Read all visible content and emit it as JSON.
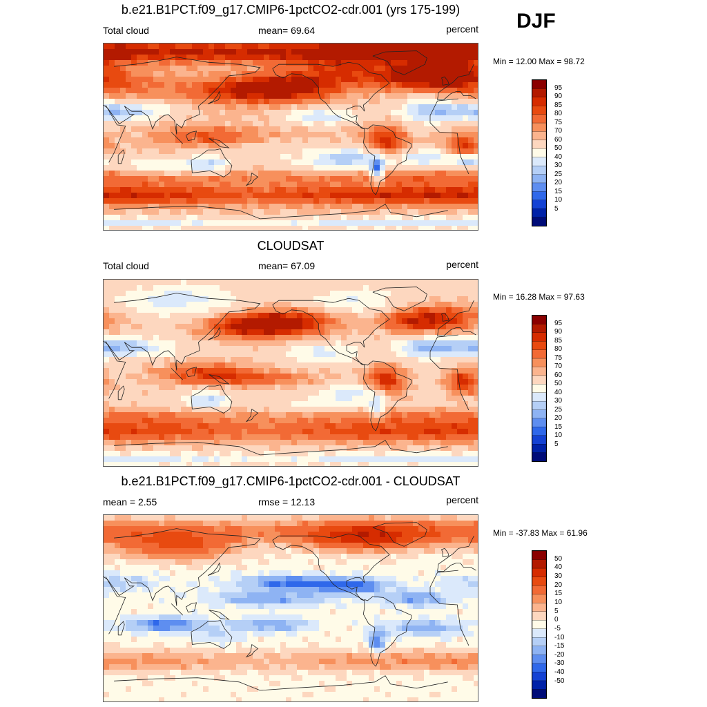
{
  "season": "DJF",
  "panels": [
    {
      "id": "model",
      "title": "b.e21.B1PCT.f09_g17.CMIP6-1pctCO2-cdr.001 (yrs 175-199)",
      "left_text": "Total cloud",
      "center_text": "mean=  69.64",
      "right_text": "percent",
      "minmax": "Min =  12.00 Max =  98.72",
      "colorbar_labels": [
        "95",
        "90",
        "85",
        "80",
        "75",
        "70",
        "60",
        "50",
        "40",
        "30",
        "25",
        "20",
        "15",
        "10",
        "5"
      ],
      "colorbar_colors": [
        "#8b0000",
        "#b31a00",
        "#d62c00",
        "#e84a10",
        "#f26a35",
        "#f7905c",
        "#fbb48e",
        "#fdd7bf",
        "#fffbe8",
        "#dbe9fb",
        "#b5cff6",
        "#8eb3f3",
        "#5e8ef0",
        "#2f68ea",
        "#1442d4",
        "#0022a8",
        "#000c78"
      ]
    },
    {
      "id": "obs",
      "title": "CLOUDSAT",
      "left_text": "Total cloud",
      "center_text": "mean=  67.09",
      "right_text": "percent",
      "minmax": "Min =  16.28 Max =  97.63",
      "colorbar_labels": [
        "95",
        "90",
        "85",
        "80",
        "75",
        "70",
        "60",
        "50",
        "40",
        "30",
        "25",
        "20",
        "15",
        "10",
        "5"
      ],
      "colorbar_colors": [
        "#8b0000",
        "#b31a00",
        "#d62c00",
        "#e84a10",
        "#f26a35",
        "#f7905c",
        "#fbb48e",
        "#fdd7bf",
        "#fffbe8",
        "#dbe9fb",
        "#b5cff6",
        "#8eb3f3",
        "#5e8ef0",
        "#2f68ea",
        "#1442d4",
        "#0022a8",
        "#000c78"
      ]
    },
    {
      "id": "diff",
      "title": "b.e21.B1PCT.f09_g17.CMIP6-1pctCO2-cdr.001 - CLOUDSAT",
      "left_text": "mean =   2.55",
      "center_text": "rmse =  12.13",
      "right_text": "percent",
      "minmax": "Min = -37.83 Max =  61.96",
      "colorbar_labels": [
        "50",
        "40",
        "30",
        "20",
        "15",
        "10",
        "5",
        "0",
        "-5",
        "-10",
        "-15",
        "-20",
        "-30",
        "-40",
        "-50"
      ],
      "colorbar_colors": [
        "#8b0000",
        "#b31a00",
        "#d62c00",
        "#e84a10",
        "#f26a35",
        "#f7905c",
        "#fbb48e",
        "#fdd7bf",
        "#fffbe8",
        "#dbe9fb",
        "#b5cff6",
        "#8eb3f3",
        "#5e8ef0",
        "#2f68ea",
        "#1442d4",
        "#0022a8",
        "#000c78"
      ]
    }
  ],
  "chart_data": [
    {
      "type": "heatmap",
      "title": "b.e21.B1PCT.f09_g17.CMIP6-1pctCO2-cdr.001 (yrs 175-199)",
      "variable": "Total cloud",
      "units": "percent",
      "mean": 69.64,
      "min": 12.0,
      "max": 98.72,
      "levels": [
        5,
        10,
        15,
        20,
        25,
        30,
        40,
        50,
        60,
        70,
        75,
        80,
        85,
        90,
        95
      ],
      "blobs": [
        {
          "lon": -110,
          "lat": 82,
          "value": 95,
          "sx": 110,
          "sy": 8
        },
        {
          "lon": 30,
          "lat": 82,
          "value": 92,
          "sx": 90,
          "sy": 7
        },
        {
          "lon": 170,
          "lat": 45,
          "value": 95,
          "sx": 45,
          "sy": 9
        },
        {
          "lon": -30,
          "lat": 58,
          "value": 95,
          "sx": 35,
          "sy": 8
        },
        {
          "lon": -150,
          "lat": 50,
          "value": 88,
          "sx": 30,
          "sy": 9
        },
        {
          "lon": -105,
          "lat": 62,
          "value": 85,
          "sx": 30,
          "sy": 10
        },
        {
          "lon": 40,
          "lat": 50,
          "value": 82,
          "sx": 40,
          "sy": 10
        },
        {
          "lon": 0,
          "lat": 62,
          "value": 88,
          "sx": 30,
          "sy": 9
        },
        {
          "lon": 15,
          "lat": -10,
          "value": 92,
          "sx": 12,
          "sy": 9
        },
        {
          "lon": -60,
          "lat": -5,
          "value": 93,
          "sx": 14,
          "sy": 12
        },
        {
          "lon": 130,
          "lat": 0,
          "value": 85,
          "sx": 35,
          "sy": 7
        },
        {
          "lon": -160,
          "lat": 5,
          "value": 72,
          "sx": 50,
          "sy": 5
        },
        {
          "lon": -160,
          "lat": -12,
          "value": 62,
          "sx": 40,
          "sy": 6
        },
        {
          "lon": 0,
          "lat": -55,
          "value": 95,
          "sx": 180,
          "sy": 7
        },
        {
          "lon": 0,
          "lat": -38,
          "value": 82,
          "sx": 180,
          "sy": 5
        },
        {
          "lon": 40,
          "lat": 25,
          "value": 30,
          "sx": 35,
          "sy": 6
        },
        {
          "lon": -20,
          "lat": 25,
          "value": 40,
          "sx": 20,
          "sy": 8
        },
        {
          "lon": -120,
          "lat": 20,
          "value": 42,
          "sx": 25,
          "sy": 5
        },
        {
          "lon": -90,
          "lat": -18,
          "value": 45,
          "sx": 20,
          "sy": 6
        },
        {
          "lon": 130,
          "lat": -25,
          "value": 40,
          "sx": 15,
          "sy": 6
        },
        {
          "lon": -68,
          "lat": -30,
          "value": 22,
          "sx": 5,
          "sy": 8
        },
        {
          "lon": 20,
          "lat": -22,
          "value": 30,
          "sx": 8,
          "sy": 4
        },
        {
          "lon": -20,
          "lat": -20,
          "value": 45,
          "sx": 25,
          "sy": 6
        },
        {
          "lon": -110,
          "lat": -25,
          "value": 50,
          "sx": 30,
          "sy": 6
        },
        {
          "lon": 80,
          "lat": -28,
          "value": 50,
          "sx": 25,
          "sy": 5
        },
        {
          "lon": 0,
          "lat": -82,
          "value": 45,
          "sx": 180,
          "sy": 4
        }
      ],
      "base": 70
    },
    {
      "type": "heatmap",
      "title": "CLOUDSAT",
      "variable": "Total cloud",
      "units": "percent",
      "mean": 67.09,
      "min": 16.28,
      "max": 97.63,
      "levels": [
        5,
        10,
        15,
        20,
        25,
        30,
        40,
        50,
        60,
        70,
        75,
        80,
        85,
        90,
        95
      ],
      "blobs": [
        {
          "lon": -150,
          "lat": 50,
          "value": 90,
          "sx": 35,
          "sy": 9
        },
        {
          "lon": 170,
          "lat": 45,
          "value": 92,
          "sx": 35,
          "sy": 9
        },
        {
          "lon": -30,
          "lat": 50,
          "value": 90,
          "sx": 25,
          "sy": 9
        },
        {
          "lon": 10,
          "lat": 55,
          "value": 82,
          "sx": 30,
          "sy": 10
        },
        {
          "lon": 15,
          "lat": -8,
          "value": 92,
          "sx": 12,
          "sy": 9
        },
        {
          "lon": -60,
          "lat": -8,
          "value": 94,
          "sx": 14,
          "sy": 11
        },
        {
          "lon": 130,
          "lat": 0,
          "value": 88,
          "sx": 35,
          "sy": 8
        },
        {
          "lon": -170,
          "lat": -5,
          "value": 80,
          "sx": 40,
          "sy": 5
        },
        {
          "lon": 0,
          "lat": -55,
          "value": 90,
          "sx": 180,
          "sy": 8
        },
        {
          "lon": 0,
          "lat": -40,
          "value": 78,
          "sx": 180,
          "sy": 5
        },
        {
          "lon": 40,
          "lat": 25,
          "value": 28,
          "sx": 35,
          "sy": 6
        },
        {
          "lon": -20,
          "lat": 25,
          "value": 35,
          "sx": 20,
          "sy": 7
        },
        {
          "lon": -120,
          "lat": 20,
          "value": 45,
          "sx": 25,
          "sy": 6
        },
        {
          "lon": -90,
          "lat": -18,
          "value": 45,
          "sx": 20,
          "sy": 6
        },
        {
          "lon": 130,
          "lat": -25,
          "value": 38,
          "sx": 15,
          "sy": 6
        },
        {
          "lon": -68,
          "lat": -30,
          "value": 40,
          "sx": 5,
          "sy": 8
        },
        {
          "lon": 100,
          "lat": 70,
          "value": 45,
          "sx": 40,
          "sy": 10
        },
        {
          "lon": -90,
          "lat": 70,
          "value": 50,
          "sx": 30,
          "sy": 8
        },
        {
          "lon": 0,
          "lat": -82,
          "value": 45,
          "sx": 180,
          "sy": 4
        },
        {
          "lon": -120,
          "lat": -30,
          "value": 55,
          "sx": 30,
          "sy": 6
        }
      ],
      "base": 67
    },
    {
      "type": "heatmap",
      "title": "b.e21.B1PCT.f09_g17.CMIP6-1pctCO2-cdr.001 - CLOUDSAT",
      "units": "percent",
      "mean": 2.55,
      "rmse": 12.13,
      "min": -37.83,
      "max": 61.96,
      "levels": [
        -50,
        -40,
        -30,
        -20,
        -15,
        -10,
        -5,
        0,
        5,
        10,
        15,
        20,
        30,
        40,
        50
      ],
      "blobs": [
        {
          "lon": 0,
          "lat": 75,
          "value": 25,
          "sx": 180,
          "sy": 8
        },
        {
          "lon": -80,
          "lat": 68,
          "value": 35,
          "sx": 40,
          "sy": 9
        },
        {
          "lon": 100,
          "lat": 60,
          "value": 30,
          "sx": 40,
          "sy": 9
        },
        {
          "lon": -150,
          "lat": 25,
          "value": -22,
          "sx": 35,
          "sy": 5
        },
        {
          "lon": -90,
          "lat": 22,
          "value": -20,
          "sx": 25,
          "sy": 5
        },
        {
          "lon": -170,
          "lat": 10,
          "value": -15,
          "sx": 40,
          "sy": 5
        },
        {
          "lon": -30,
          "lat": 10,
          "value": -15,
          "sx": 25,
          "sy": 5
        },
        {
          "lon": 90,
          "lat": -15,
          "value": -22,
          "sx": 25,
          "sy": 5
        },
        {
          "lon": -20,
          "lat": -18,
          "value": -15,
          "sx": 25,
          "sy": 5
        },
        {
          "lon": -170,
          "lat": -15,
          "value": -15,
          "sx": 25,
          "sy": 5
        },
        {
          "lon": 0,
          "lat": -50,
          "value": 18,
          "sx": 180,
          "sy": 7
        },
        {
          "lon": -68,
          "lat": -30,
          "value": -20,
          "sx": 6,
          "sy": 8
        },
        {
          "lon": 40,
          "lat": 25,
          "value": -8,
          "sx": 30,
          "sy": 6
        },
        {
          "lon": 140,
          "lat": -25,
          "value": -5,
          "sx": 15,
          "sy": 6
        }
      ],
      "base": 3
    }
  ]
}
